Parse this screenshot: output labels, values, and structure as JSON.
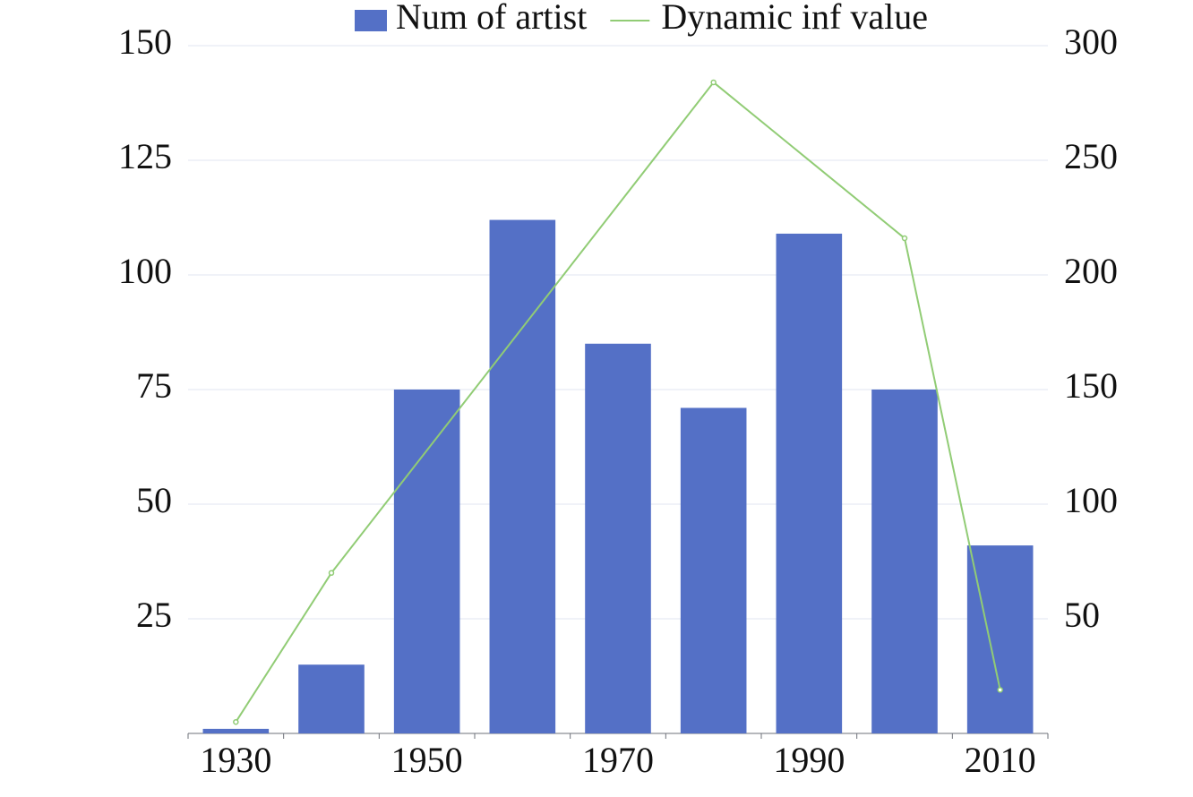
{
  "chart_data": {
    "type": "bar",
    "categories": [
      "1930",
      null,
      "1950",
      null,
      "1970",
      null,
      "1990",
      null,
      "2010"
    ],
    "series": [
      {
        "name": "Num of artist",
        "type": "bar",
        "color": "#5470c6",
        "values": [
          1,
          15,
          75,
          112,
          85,
          71,
          109,
          75,
          41
        ]
      },
      {
        "name": "Dynamic inf value",
        "type": "line",
        "axis": "y2",
        "color": "#91cc75",
        "values": [
          5,
          70,
          null,
          null,
          null,
          284,
          null,
          216,
          19
        ]
      }
    ],
    "ylim": [
      0,
      150
    ],
    "yticks": [
      25,
      50,
      75,
      100,
      125,
      150
    ],
    "y2lim": [
      0,
      300
    ],
    "y2ticks": [
      50,
      100,
      150,
      200,
      250,
      300
    ],
    "grid": true
  }
}
